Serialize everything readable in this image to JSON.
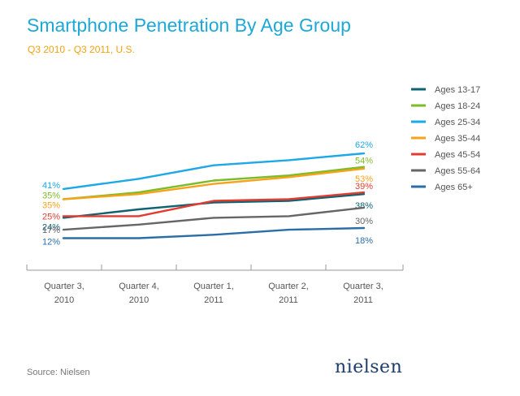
{
  "header": {
    "title": "Smartphone Penetration By Age Group",
    "subtitle": "Q3 2010 - Q3 2011, U.S."
  },
  "footer": {
    "source": "Source: Nielsen",
    "logo_text": "nielsen"
  },
  "chart_data": {
    "type": "line",
    "title": "Smartphone Penetration By Age Group",
    "subtitle": "Q3 2010 - Q3 2011, U.S.",
    "categories": [
      [
        "Quarter 3,",
        "2010"
      ],
      [
        "Quarter 4,",
        "2010"
      ],
      [
        "Quarter 1,",
        "2011"
      ],
      [
        "Quarter 2,",
        "2011"
      ],
      [
        "Quarter 3,",
        "2011"
      ]
    ],
    "ylim": [
      0,
      70
    ],
    "grid": false,
    "legend": "right",
    "series": [
      {
        "name": "Ages 13-17",
        "color": "#0f6373",
        "values": [
          24,
          29,
          33,
          34,
          38
        ],
        "start_label": "24%",
        "end_label": "38%"
      },
      {
        "name": "Ages 18-24",
        "color": "#7cbb2a",
        "values": [
          35,
          39,
          46,
          49,
          54
        ],
        "start_label": "35%",
        "end_label": "54%"
      },
      {
        "name": "Ages 25-34",
        "color": "#1da8e6",
        "values": [
          41,
          47,
          55,
          58,
          62
        ],
        "start_label": "41%",
        "end_label": "62%"
      },
      {
        "name": "Ages 35-44",
        "color": "#f7a21b",
        "values": [
          35,
          38,
          44,
          48,
          53
        ],
        "start_label": "35%",
        "end_label": "53%"
      },
      {
        "name": "Ages 45-54",
        "color": "#e23c31",
        "values": [
          25,
          25,
          34,
          35,
          39
        ],
        "start_label": "25%",
        "end_label": "39%"
      },
      {
        "name": "Ages 55-64",
        "color": "#666666",
        "values": [
          17,
          20,
          24,
          25,
          30
        ],
        "start_label": "17%",
        "end_label": "30%"
      },
      {
        "name": "Ages 65+",
        "color": "#2b6ea7",
        "values": [
          12,
          12,
          14,
          17,
          18
        ],
        "start_label": "12%",
        "end_label": "18%"
      }
    ]
  }
}
